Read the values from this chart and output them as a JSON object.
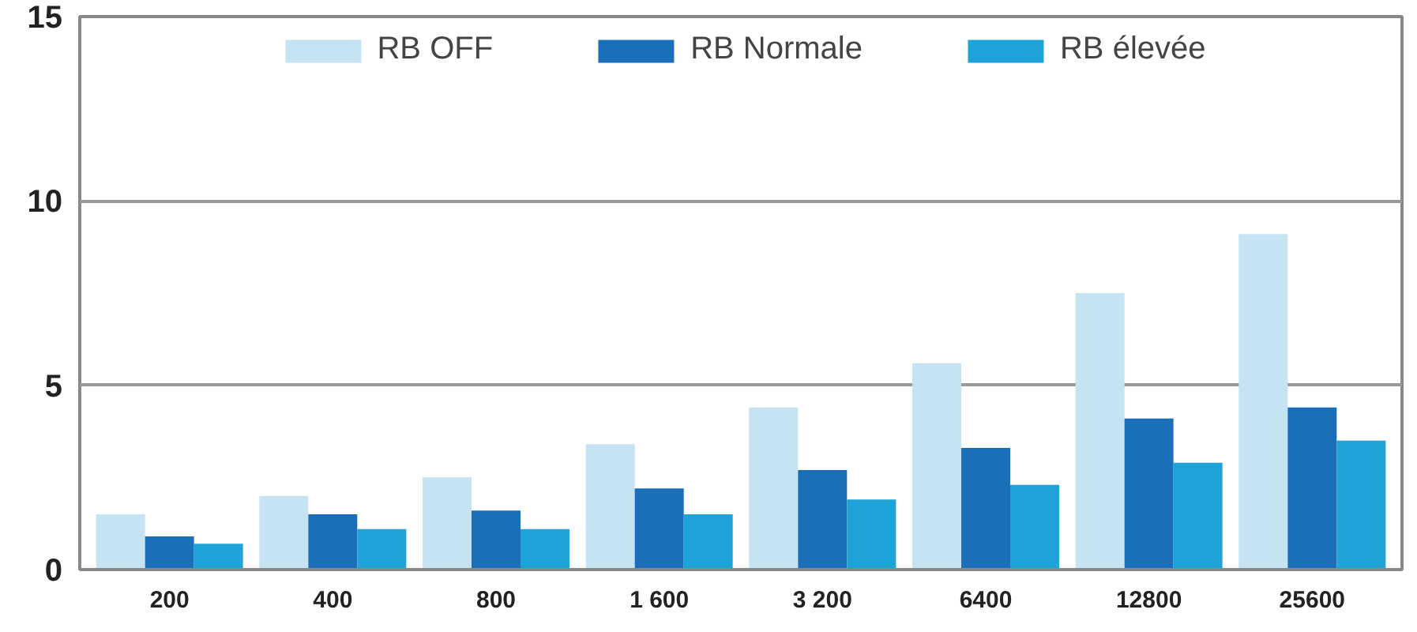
{
  "chart_data": {
    "type": "bar",
    "categories": [
      "200",
      "400",
      "800",
      "1 600",
      "3 200",
      "6400",
      "12800",
      "25600"
    ],
    "series": [
      {
        "name": "RB OFF",
        "color": "#c5e3f3",
        "values": [
          1.5,
          2.0,
          2.5,
          3.4,
          4.4,
          5.6,
          7.5,
          9.1
        ]
      },
      {
        "name": "RB Normale",
        "color": "#1a6fb8",
        "values": [
          0.9,
          1.5,
          1.6,
          2.2,
          2.7,
          3.3,
          4.1,
          4.4
        ]
      },
      {
        "name": "RB élevée",
        "color": "#1ea3d9",
        "values": [
          0.7,
          1.1,
          1.1,
          1.5,
          1.9,
          2.3,
          2.9,
          3.5
        ]
      }
    ],
    "ylim": [
      0,
      15
    ],
    "yticks": [
      0,
      5,
      10,
      15
    ],
    "grid": "y",
    "legend": "top"
  }
}
